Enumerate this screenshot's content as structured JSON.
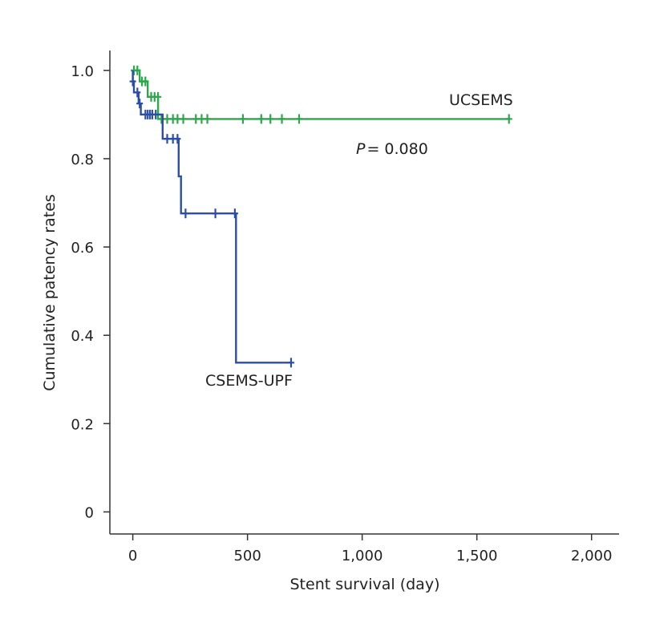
{
  "chart_data": {
    "type": "line",
    "title": "",
    "xlabel": "Stent survival (day)",
    "ylabel": "Cumulative patency rates",
    "xlim": [
      -100,
      2120
    ],
    "ylim": [
      -0.05,
      1.045
    ],
    "x_ticks": [
      0,
      500,
      1000,
      1500,
      2000
    ],
    "x_tick_labels": [
      "0",
      "500",
      "1,000",
      "1,500",
      "2,000"
    ],
    "y_ticks": [
      0,
      0.2,
      0.4,
      0.6,
      0.8,
      1.0
    ],
    "y_tick_labels": [
      "0",
      "0.2",
      "0.4",
      "0.6",
      "0.8",
      "1.0"
    ],
    "grid": false,
    "series": [
      {
        "name": "UCSEMS",
        "color": "#2aa84a",
        "label": "UCSEMS",
        "steps": [
          [
            0,
            1.0
          ],
          [
            30,
            1.0
          ],
          [
            30,
            0.975
          ],
          [
            65,
            0.975
          ],
          [
            65,
            0.94
          ],
          [
            110,
            0.94
          ],
          [
            110,
            0.89
          ],
          [
            1640,
            0.89
          ]
        ],
        "censor": [
          [
            5,
            1.0
          ],
          [
            20,
            1.0
          ],
          [
            40,
            0.975
          ],
          [
            55,
            0.975
          ],
          [
            80,
            0.94
          ],
          [
            95,
            0.94
          ],
          [
            110,
            0.94
          ],
          [
            125,
            0.89
          ],
          [
            150,
            0.89
          ],
          [
            175,
            0.89
          ],
          [
            195,
            0.89
          ],
          [
            220,
            0.89
          ],
          [
            275,
            0.89
          ],
          [
            300,
            0.89
          ],
          [
            325,
            0.89
          ],
          [
            480,
            0.89
          ],
          [
            560,
            0.89
          ],
          [
            600,
            0.89
          ],
          [
            650,
            0.89
          ],
          [
            725,
            0.89
          ],
          [
            1640,
            0.89
          ]
        ]
      },
      {
        "name": "CSEMS-UPF",
        "color": "#2b4ea6",
        "label": "CSEMS-UPF",
        "steps": [
          [
            0,
            1.0
          ],
          [
            0,
            0.975
          ],
          [
            5,
            0.975
          ],
          [
            5,
            0.95
          ],
          [
            25,
            0.95
          ],
          [
            25,
            0.925
          ],
          [
            35,
            0.925
          ],
          [
            35,
            0.9
          ],
          [
            130,
            0.9
          ],
          [
            130,
            0.845
          ],
          [
            200,
            0.845
          ],
          [
            200,
            0.76
          ],
          [
            210,
            0.76
          ],
          [
            210,
            0.676
          ],
          [
            450,
            0.676
          ],
          [
            450,
            0.338
          ],
          [
            690,
            0.338
          ]
        ],
        "censor": [
          [
            0,
            0.975
          ],
          [
            20,
            0.95
          ],
          [
            30,
            0.925
          ],
          [
            55,
            0.9
          ],
          [
            65,
            0.9
          ],
          [
            75,
            0.9
          ],
          [
            85,
            0.9
          ],
          [
            100,
            0.9
          ],
          [
            150,
            0.845
          ],
          [
            175,
            0.845
          ],
          [
            195,
            0.845
          ],
          [
            230,
            0.676
          ],
          [
            360,
            0.676
          ],
          [
            445,
            0.676
          ],
          [
            690,
            0.338
          ]
        ]
      }
    ],
    "annotations": [
      {
        "text": "UCSEMS",
        "kind": "series-label"
      },
      {
        "text_italic": "P",
        "text": "= 0.080",
        "kind": "p-value"
      },
      {
        "text": "CSEMS-UPF",
        "kind": "series-label"
      }
    ]
  }
}
